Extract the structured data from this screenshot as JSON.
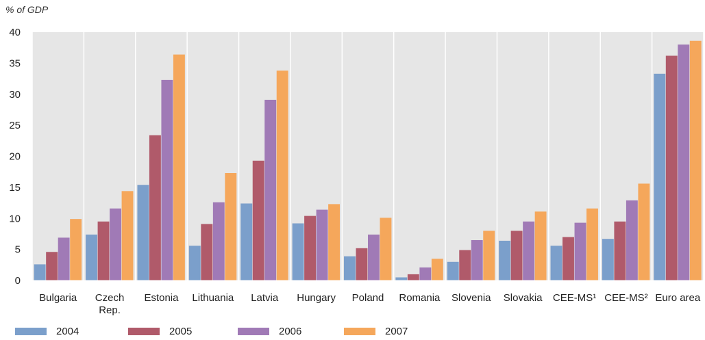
{
  "chart_data": {
    "type": "bar",
    "unit_label": "% of GDP",
    "categories": [
      "Bulgaria",
      "Czech\nRep.",
      "Estonia",
      "Lithuania",
      "Latvia",
      "Hungary",
      "Poland",
      "Romania",
      "Slovenia",
      "Slovakia",
      "CEE-MS¹",
      "CEE-MS²",
      "Euro area"
    ],
    "series": [
      {
        "name": "2004",
        "color": "#7b9fcb",
        "values": [
          2.6,
          7.4,
          15.4,
          5.6,
          12.4,
          9.2,
          3.9,
          0.5,
          3.0,
          6.4,
          5.6,
          6.7,
          33.3
        ]
      },
      {
        "name": "2005",
        "color": "#b05a6a",
        "values": [
          4.6,
          9.5,
          23.4,
          9.1,
          19.3,
          10.4,
          5.2,
          1.0,
          4.9,
          8.0,
          7.0,
          9.5,
          36.2
        ]
      },
      {
        "name": "2006",
        "color": "#a07ab6",
        "values": [
          6.9,
          11.6,
          32.3,
          12.6,
          29.1,
          11.4,
          7.4,
          2.1,
          6.5,
          9.5,
          9.3,
          12.9,
          38.0
        ]
      },
      {
        "name": "2007",
        "color": "#f5a75b",
        "values": [
          9.9,
          14.4,
          36.4,
          17.3,
          33.8,
          12.3,
          10.1,
          3.5,
          8.0,
          11.1,
          11.6,
          15.6,
          38.6
        ]
      }
    ],
    "ylim": [
      0,
      40
    ],
    "yticks": [
      0,
      5,
      10,
      15,
      20,
      25,
      30,
      35,
      40
    ],
    "grid": "vertical separators",
    "legend_position": "bottom"
  }
}
